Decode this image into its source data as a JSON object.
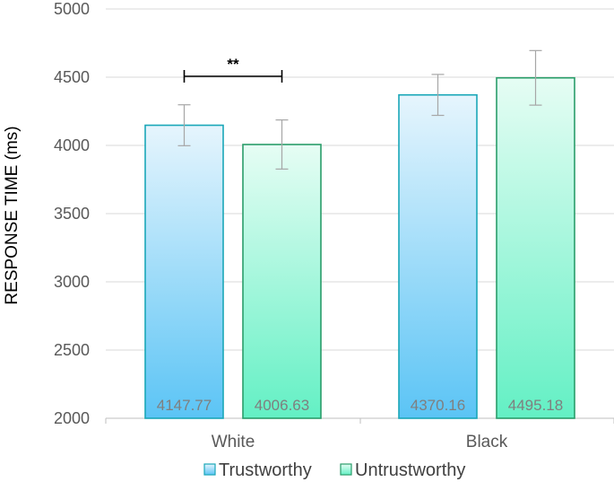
{
  "chart_data": {
    "type": "bar",
    "title": "",
    "xlabel": "",
    "ylabel": "RESPONSE TIME (ms)",
    "ylim": [
      2000,
      5000
    ],
    "yticks": [
      2000,
      2500,
      3000,
      3500,
      4000,
      4500,
      5000
    ],
    "categories": [
      "White",
      "Black"
    ],
    "series": [
      {
        "name": "Trustworthy",
        "values": [
          4147.77,
          4370.16
        ],
        "error": [
          150,
          150
        ],
        "color": "#5bc4f5",
        "edge": "#1aa7b8"
      },
      {
        "name": "Untrustworthy",
        "values": [
          4006.63,
          4495.18
        ],
        "error": [
          180,
          200
        ],
        "color": "#63f0c4",
        "edge": "#2a9d6a"
      }
    ],
    "data_labels": [
      "4147.77",
      "4006.63",
      "4370.16",
      "4495.18"
    ],
    "grid": true,
    "legend": "bottom",
    "annotations": [
      {
        "text": "**",
        "between": [
          "White/Trustworthy",
          "White/Untrustworthy"
        ]
      }
    ]
  }
}
